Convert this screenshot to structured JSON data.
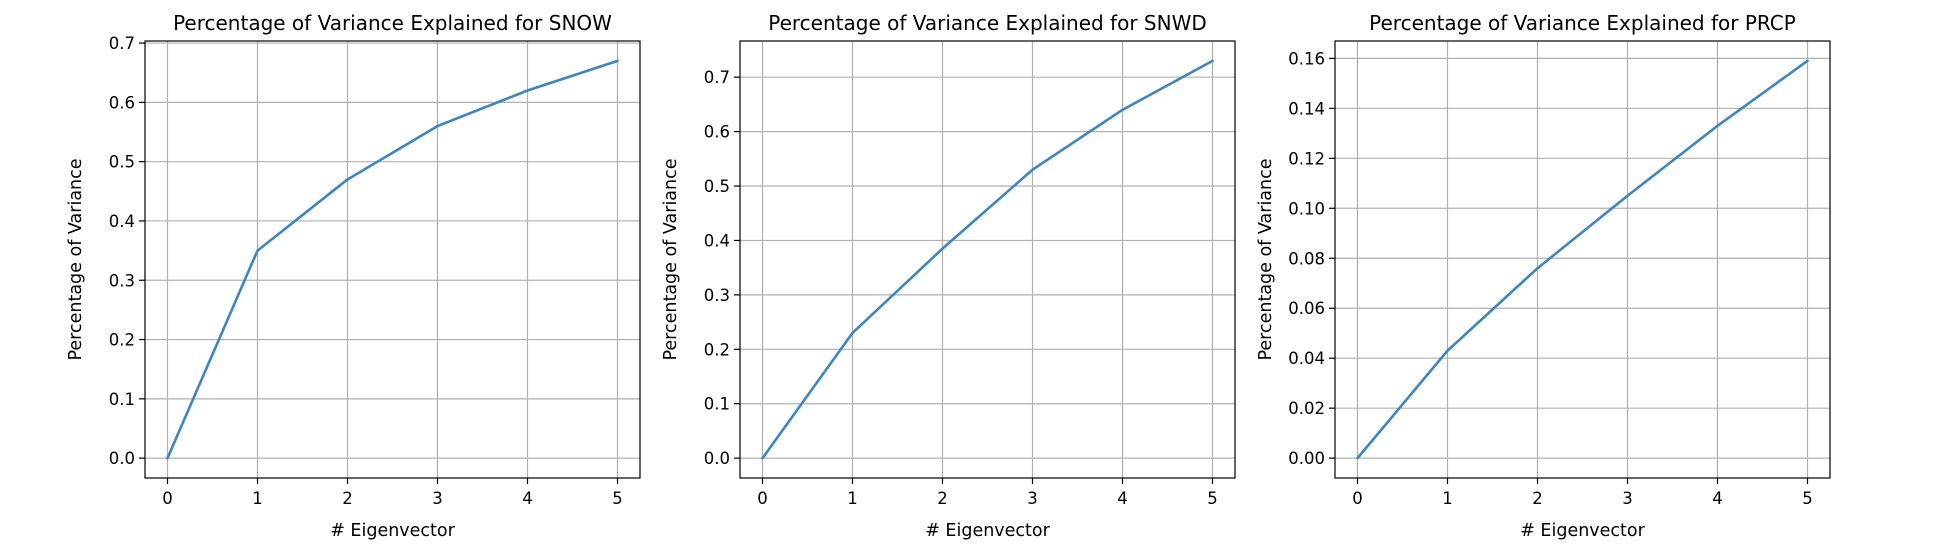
{
  "style": {
    "line_color": "#3d85c0",
    "grid_color": "#b0b0b0"
  },
  "chart_data": [
    {
      "type": "line",
      "title": "Percentage of Variance Explained for SNOW",
      "xlabel": "# Eigenvector",
      "ylabel": "Percentage of Variance",
      "x": [
        0,
        1,
        2,
        3,
        4,
        5
      ],
      "values": [
        0.0,
        0.35,
        0.47,
        0.56,
        0.62,
        0.67
      ],
      "xlim": [
        -0.25,
        5.25
      ],
      "ylim": [
        -0.0335,
        0.7035
      ],
      "xticks": [
        "0",
        "1",
        "2",
        "3",
        "4",
        "5"
      ],
      "yticks": [
        "0.0",
        "0.1",
        "0.2",
        "0.3",
        "0.4",
        "0.5",
        "0.6",
        "0.7"
      ],
      "grid": true
    },
    {
      "type": "line",
      "title": "Percentage of Variance Explained for SNWD",
      "xlabel": "# Eigenvector",
      "ylabel": "Percentage of Variance",
      "x": [
        0,
        1,
        2,
        3,
        4,
        5
      ],
      "values": [
        0.0,
        0.23,
        0.385,
        0.53,
        0.64,
        0.73
      ],
      "xlim": [
        -0.25,
        5.25
      ],
      "ylim": [
        -0.0365,
        0.7665
      ],
      "xticks": [
        "0",
        "1",
        "2",
        "3",
        "4",
        "5"
      ],
      "yticks": [
        "0.0",
        "0.1",
        "0.2",
        "0.3",
        "0.4",
        "0.5",
        "0.6",
        "0.7"
      ],
      "grid": true
    },
    {
      "type": "line",
      "title": "Percentage of Variance Explained for PRCP",
      "xlabel": "# Eigenvector",
      "ylabel": "Percentage of Variance",
      "x": [
        0,
        1,
        2,
        3,
        4,
        5
      ],
      "values": [
        0.0,
        0.043,
        0.076,
        0.105,
        0.133,
        0.159
      ],
      "xlim": [
        -0.25,
        5.25
      ],
      "ylim": [
        -0.00795,
        0.16695
      ],
      "xticks": [
        "0",
        "1",
        "2",
        "3",
        "4",
        "5"
      ],
      "yticks": [
        "0.00",
        "0.02",
        "0.04",
        "0.06",
        "0.08",
        "0.10",
        "0.12",
        "0.14",
        "0.16"
      ],
      "grid": true
    }
  ]
}
